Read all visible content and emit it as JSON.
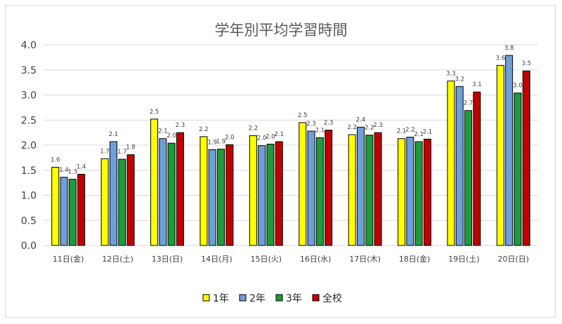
{
  "chart_data": {
    "type": "bar",
    "title": "学年別平均学習時間",
    "xlabel": "",
    "ylabel": "",
    "ylim": [
      0,
      4.0
    ],
    "yticks": [
      "0.0",
      "0.5",
      "1.0",
      "1.5",
      "2.0",
      "2.5",
      "3.0",
      "3.5",
      "4.0"
    ],
    "grid": true,
    "legend": "bottom",
    "categories": [
      "11日(金)",
      "12日(土)",
      "13日(日)",
      "14日(月)",
      "15日(火)",
      "16日(水)",
      "17日(木)",
      "18日(金)",
      "19日(土)",
      "20日(日)"
    ],
    "series": [
      {
        "name": "1年",
        "color": "#ffff00",
        "values": [
          1.56,
          1.73,
          2.52,
          2.17,
          2.19,
          2.45,
          2.21,
          2.13,
          3.28,
          3.59
        ]
      },
      {
        "name": "2年",
        "color": "#6f9fd8",
        "values": [
          1.36,
          2.07,
          2.13,
          1.91,
          1.99,
          2.28,
          2.36,
          2.16,
          3.17,
          3.79
        ]
      },
      {
        "name": "3年",
        "color": "#1f9a3c",
        "values": [
          1.32,
          1.72,
          2.04,
          1.92,
          2.02,
          2.15,
          2.2,
          2.07,
          2.69,
          3.04
        ]
      },
      {
        "name": "全校",
        "color": "#c00000",
        "values": [
          1.42,
          1.81,
          2.25,
          2.01,
          2.07,
          2.3,
          2.25,
          2.12,
          3.06,
          3.48
        ]
      }
    ]
  }
}
